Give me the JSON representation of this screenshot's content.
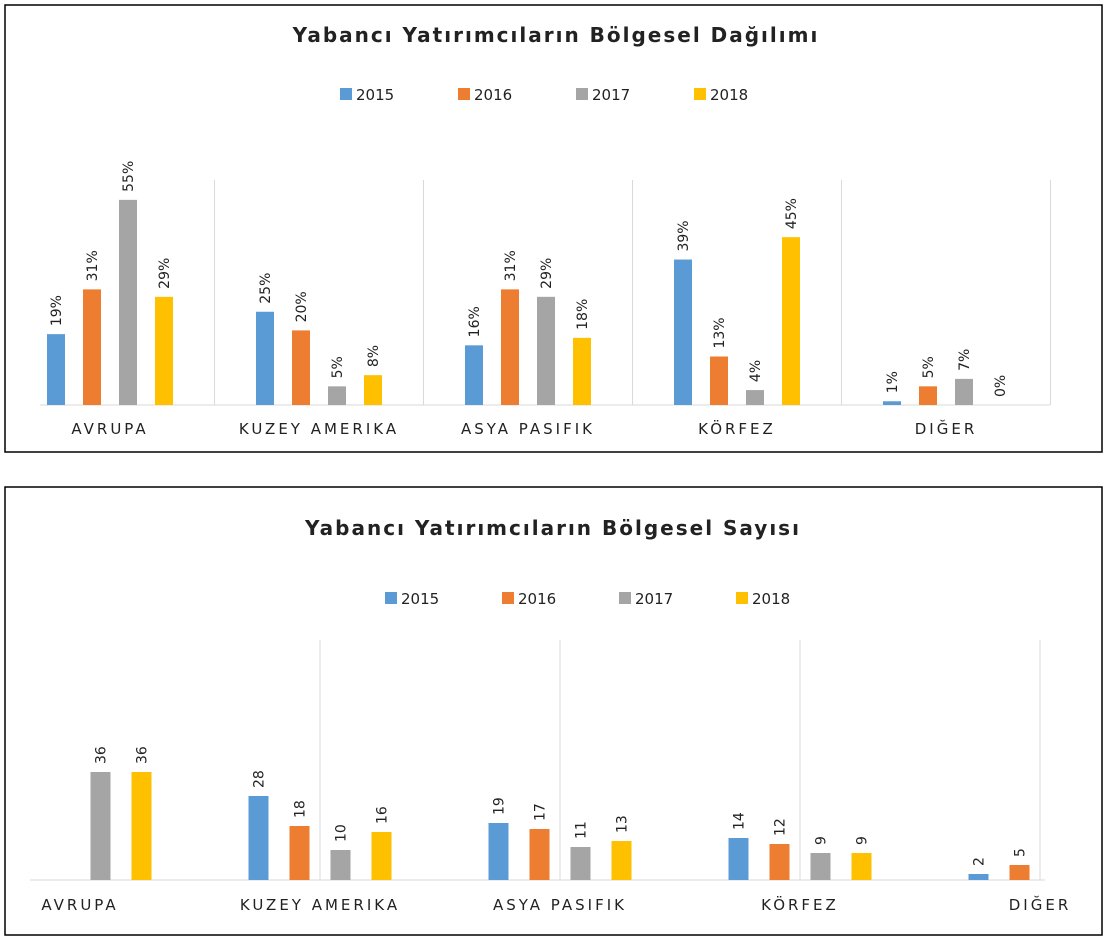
{
  "chart_data": [
    {
      "type": "bar",
      "title": "Yabancı Yatırımcıların Bölgesel Dağılımı",
      "categories": [
        "AVRUPA",
        "KUZEY AMERIKA",
        "ASYA PASIFIK",
        "KÖRFEZ",
        "DIĞER"
      ],
      "series": [
        {
          "name": "2015",
          "color": "#5b9bd5",
          "values": [
            19,
            25,
            16,
            39,
            1
          ],
          "value_labels": [
            "19%",
            "25%",
            "16%",
            "39%",
            "1%"
          ]
        },
        {
          "name": "2016",
          "color": "#ed7d31",
          "values": [
            31,
            20,
            31,
            13,
            5
          ],
          "value_labels": [
            "31%",
            "20%",
            "31%",
            "13%",
            "5%"
          ]
        },
        {
          "name": "2017",
          "color": "#a5a5a5",
          "values": [
            55,
            5,
            29,
            4,
            7
          ],
          "value_labels": [
            "55%",
            "5%",
            "29%",
            "4%",
            "7%"
          ]
        },
        {
          "name": "2018",
          "color": "#ffc000",
          "values": [
            29,
            8,
            18,
            45,
            0
          ],
          "value_labels": [
            "29%",
            "8%",
            "18%",
            "45%",
            "0%"
          ]
        }
      ]
    },
    {
      "type": "bar",
      "title": "Yabancı Yatırımcıların Bölgesel Sayısı",
      "categories": [
        "AVRUPA",
        "KUZEY AMERIKA",
        "ASYA PASIFIK",
        "KÖRFEZ",
        "DIĞER"
      ],
      "series": [
        {
          "name": "2015",
          "color": "#5b9bd5",
          "values": [
            null,
            28,
            19,
            14,
            2
          ]
        },
        {
          "name": "2016",
          "color": "#ed7d31",
          "values": [
            null,
            18,
            17,
            12,
            5
          ]
        },
        {
          "name": "2017",
          "color": "#a5a5a5",
          "values": [
            36,
            10,
            11,
            9,
            null
          ]
        },
        {
          "name": "2018",
          "color": "#ffc000",
          "values": [
            36,
            16,
            13,
            9,
            null
          ]
        }
      ]
    }
  ]
}
